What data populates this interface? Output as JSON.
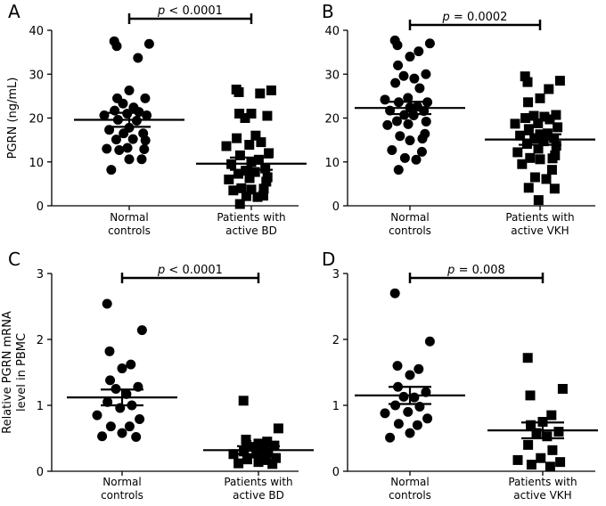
{
  "chart_data": [
    {
      "type": "scatter",
      "panel": "A",
      "ylabel": "PGRN (ng/mL)",
      "ylim": [
        0,
        40
      ],
      "yticks": [
        "0",
        "10",
        "20",
        "30",
        "40"
      ],
      "categories": [
        "Normal controls",
        "Patients with active BD"
      ],
      "category_lines": [
        [
          "Normal",
          "controls"
        ],
        [
          "Patients with",
          "active BD"
        ]
      ],
      "markers": [
        "circle",
        "square"
      ],
      "p_prefix": "p",
      "p_rest": " < 0.0001",
      "groups": [
        {
          "name": "Normal controls",
          "mean": 19.6,
          "sem_low": 18.0,
          "sem_high": 21.2,
          "values": [
            37.5,
            36.9,
            36.4,
            33.7,
            26.3,
            24.5,
            24.5,
            23.3,
            22.4,
            21.7,
            21.4,
            21.0,
            20.6,
            20.6,
            19.6,
            19.4,
            17.8,
            17.3,
            16.5,
            16.5,
            15.2,
            15.1,
            14.9,
            13.2,
            13.0,
            12.9,
            12.7,
            10.6,
            10.6,
            8.2
          ]
        },
        {
          "name": "Patients with active BD",
          "mean": 9.6,
          "sem_low": 8.2,
          "sem_high": 11.0,
          "values": [
            26.5,
            26.3,
            25.9,
            25.6,
            21.0,
            21.0,
            20.5,
            20.0,
            16.0,
            15.4,
            14.5,
            13.9,
            13.6,
            12.0,
            11.5,
            10.5,
            10.0,
            9.5,
            8.5,
            8.0,
            7.7,
            7.3,
            6.5,
            6.3,
            6.0,
            5.5,
            4.0,
            3.9,
            3.7,
            3.5,
            2.3,
            2.2,
            2.0,
            0.4
          ]
        }
      ]
    },
    {
      "type": "scatter",
      "panel": "B",
      "ylabel": "",
      "ylim": [
        0,
        40
      ],
      "yticks": [
        "0",
        "10",
        "20",
        "30",
        "40"
      ],
      "categories": [
        "Normal controls",
        "Patients with active VKH"
      ],
      "category_lines": [
        [
          "Normal",
          "controls"
        ],
        [
          "Patients with",
          "active VKH"
        ]
      ],
      "markers": [
        "circle",
        "square"
      ],
      "p_prefix": "p",
      "p_rest": " = 0.0002",
      "groups": [
        {
          "name": "Normal controls",
          "mean": 22.3,
          "sem_low": 20.9,
          "sem_high": 23.7,
          "values": [
            37.7,
            37.0,
            36.6,
            35.2,
            34.0,
            32.0,
            30.0,
            29.6,
            29.0,
            28.0,
            26.8,
            24.6,
            24.2,
            23.6,
            23.6,
            22.6,
            22.4,
            21.7,
            21.6,
            20.7,
            20.6,
            19.3,
            19.2,
            18.6,
            18.4,
            16.4,
            15.9,
            15.3,
            14.9,
            12.7,
            12.3,
            10.9,
            10.5,
            8.2
          ]
        },
        {
          "name": "Patients with active VKH",
          "mean": 15.1,
          "sem_low": 13.9,
          "sem_high": 16.3,
          "values": [
            29.5,
            28.5,
            28.2,
            26.6,
            24.5,
            23.6,
            20.7,
            20.5,
            20.3,
            20.0,
            19.7,
            18.8,
            18.7,
            17.9,
            17.5,
            16.5,
            16.3,
            16.0,
            15.4,
            15.3,
            14.7,
            14.1,
            13.7,
            13.0,
            12.2,
            11.5,
            10.9,
            10.8,
            10.6,
            9.5,
            8.2,
            6.5,
            6.1,
            4.1,
            3.9,
            1.3
          ]
        }
      ]
    },
    {
      "type": "scatter",
      "panel": "C",
      "ylabel": "Relative PGRN mRNA level in PBMC",
      "ylabel_lines": [
        "Relative PGRN mRNA",
        "level in PBMC"
      ],
      "ylim": [
        0,
        3
      ],
      "yticks": [
        "0",
        "1",
        "2",
        "3"
      ],
      "categories": [
        "Normal controls",
        "Patients with active BD"
      ],
      "category_lines": [
        [
          "Normal",
          "controls"
        ],
        [
          "Patients with",
          "active BD"
        ]
      ],
      "markers": [
        "circle",
        "square"
      ],
      "p_prefix": "p",
      "p_rest": " < 0.0001",
      "groups": [
        {
          "name": "Normal controls",
          "mean": 1.12,
          "sem_low": 1.0,
          "sem_high": 1.24,
          "values": [
            2.54,
            2.14,
            1.82,
            1.62,
            1.56,
            1.38,
            1.28,
            1.25,
            1.17,
            1.05,
            1.0,
            0.96,
            0.85,
            0.79,
            0.68,
            0.68,
            0.58,
            0.53,
            0.52
          ]
        },
        {
          "name": "Patients with active BD",
          "mean": 0.32,
          "sem_low": 0.26,
          "sem_high": 0.38,
          "values": [
            1.07,
            0.65,
            0.48,
            0.45,
            0.42,
            0.4,
            0.39,
            0.37,
            0.32,
            0.3,
            0.29,
            0.27,
            0.26,
            0.2,
            0.18,
            0.17,
            0.14,
            0.12,
            0.11
          ]
        }
      ]
    },
    {
      "type": "scatter",
      "panel": "D",
      "ylabel": "",
      "ylim": [
        0,
        3
      ],
      "yticks": [
        "0",
        "1",
        "2",
        "3"
      ],
      "categories": [
        "Normal controls",
        "Patients with active VKH"
      ],
      "category_lines": [
        [
          "Normal",
          "controls"
        ],
        [
          "Patients with",
          "active VKH"
        ]
      ],
      "markers": [
        "circle",
        "square"
      ],
      "p_prefix": "p",
      "p_rest": " = 0.008",
      "groups": [
        {
          "name": "Normal controls",
          "mean": 1.15,
          "sem_low": 1.02,
          "sem_high": 1.28,
          "values": [
            2.7,
            1.97,
            1.6,
            1.55,
            1.46,
            1.28,
            1.2,
            1.13,
            1.12,
            1.0,
            0.98,
            0.9,
            0.88,
            0.8,
            0.72,
            0.7,
            0.58,
            0.51
          ]
        },
        {
          "name": "Patients with active VKH",
          "mean": 0.62,
          "sem_low": 0.5,
          "sem_high": 0.74,
          "values": [
            1.72,
            1.25,
            1.15,
            0.85,
            0.75,
            0.7,
            0.6,
            0.58,
            0.53,
            0.4,
            0.32,
            0.2,
            0.17,
            0.14,
            0.1,
            0.07
          ]
        }
      ]
    }
  ]
}
